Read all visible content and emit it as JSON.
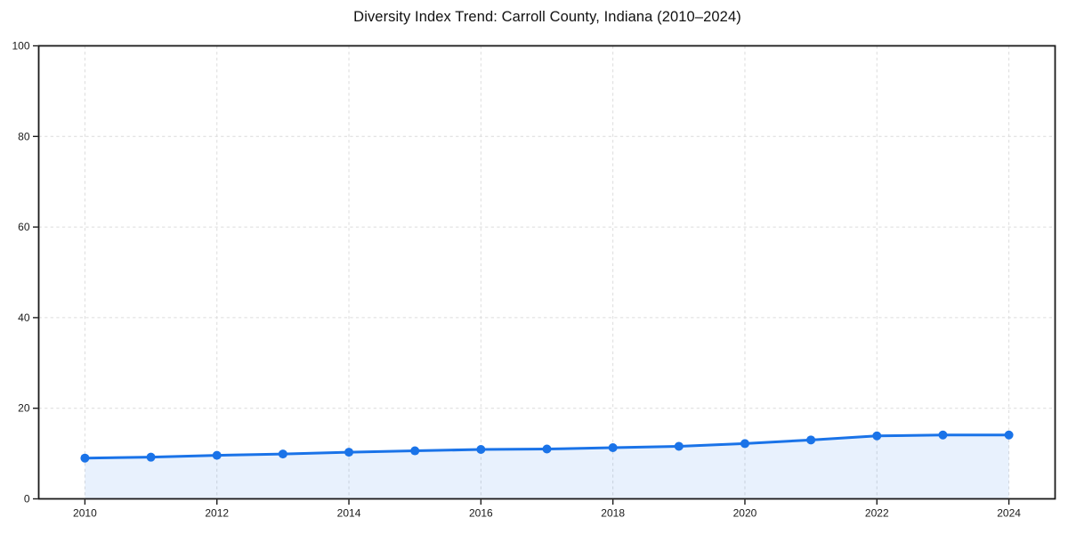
{
  "chart_data": {
    "type": "line",
    "variant": "area-under-line",
    "title": "Diversity Index Trend: Carroll County, Indiana (2010–2024)",
    "xlabel": "",
    "ylabel": "",
    "x": [
      2010,
      2011,
      2012,
      2013,
      2014,
      2015,
      2016,
      2017,
      2018,
      2019,
      2020,
      2021,
      2022,
      2023,
      2024
    ],
    "series": [
      {
        "name": "Diversity Index",
        "values": [
          9.0,
          9.2,
          9.6,
          9.9,
          10.3,
          10.6,
          10.9,
          11.0,
          11.3,
          11.6,
          12.2,
          13.0,
          13.9,
          14.1,
          14.1
        ]
      }
    ],
    "xlim": [
      2009.3,
      2024.7
    ],
    "ylim": [
      0,
      100
    ],
    "x_ticks": [
      2010,
      2012,
      2014,
      2016,
      2018,
      2020,
      2022,
      2024
    ],
    "y_ticks": [
      0,
      20,
      40,
      60,
      80,
      100
    ],
    "grid": true,
    "grid_style": "dashed",
    "legend": false,
    "marker": "circle",
    "colors": {
      "line": "#1a73e8",
      "marker": "#1a73e8",
      "fill": "rgba(26,115,232,0.10)",
      "grid": "#dcdcdc",
      "spine": "#1a1a1a",
      "tick_label": "#1a1a1a",
      "title": "#111111",
      "background": "#ffffff"
    }
  }
}
